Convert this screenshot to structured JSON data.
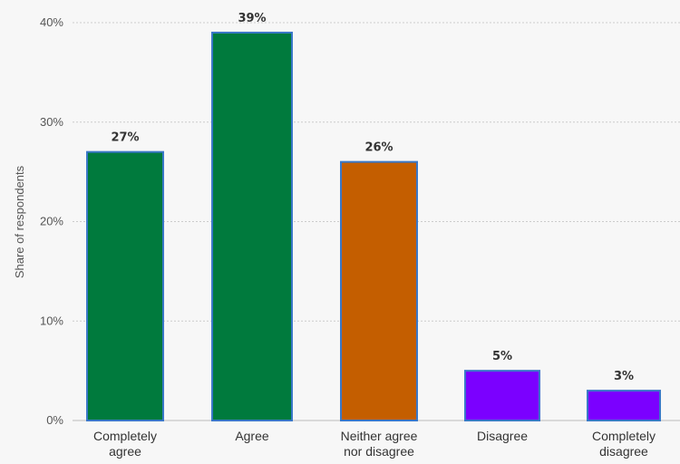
{
  "chart_data": {
    "type": "bar",
    "title": "",
    "xlabel": "",
    "ylabel": "Share of respondents",
    "ylim": [
      0,
      40
    ],
    "yticks": [
      0,
      10,
      20,
      30,
      40
    ],
    "tick_suffix": "%",
    "grid": true,
    "legend": "none",
    "categories": [
      [
        "Completely",
        "agree"
      ],
      [
        "Agree"
      ],
      [
        "Neither agree",
        "nor disagree"
      ],
      [
        "Disagree"
      ],
      [
        "Completely",
        "disagree"
      ]
    ],
    "values": [
      27,
      39,
      26,
      5,
      3
    ],
    "data_labels": [
      "27%",
      "39%",
      "26%",
      "5%",
      "3%"
    ],
    "colors": [
      "#007a3d",
      "#007a3d",
      "#c45e00",
      "#7b00ff",
      "#7b00ff"
    ],
    "border_color": "#3a78c8"
  }
}
